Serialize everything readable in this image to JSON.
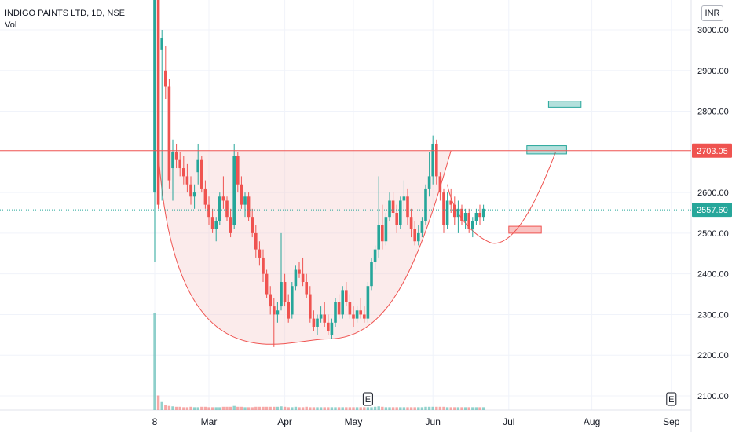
{
  "legend": {
    "symbol": "INDIGO PAINTS LTD, 1D, NSE",
    "volume_label": "Vol"
  },
  "currency": "INR",
  "colors": {
    "up": "#26a69a",
    "down": "#ef5350",
    "grid": "#f0f3fa",
    "resistance": "#ef5350",
    "pattern": "#f4c7c7"
  },
  "earnings_marker": "E",
  "chart_data": {
    "type": "candlestick",
    "ylim": [
      2070,
      3100
    ],
    "y_ticks": [
      2100,
      2200,
      2300,
      2400,
      2500,
      2600,
      2700,
      2800,
      2900,
      3000
    ],
    "x_ticks": [
      {
        "label": "8",
        "index": 0
      },
      {
        "label": "Mar",
        "index": 15
      },
      {
        "label": "Apr",
        "index": 36
      },
      {
        "label": "May",
        "index": 55
      },
      {
        "label": "Jun",
        "index": 77
      },
      {
        "label": "Jul",
        "index": 98
      },
      {
        "label": "Aug",
        "index": 121
      },
      {
        "label": "Sep",
        "index": 143
      }
    ],
    "price_labels": [
      {
        "value": 2703.05,
        "text": "2703.05",
        "color": "#ef5350",
        "line": "solid"
      },
      {
        "value": 2557.6,
        "text": "2557.60",
        "color": "#26a69a",
        "line": "dotted"
      }
    ],
    "series": [
      {
        "name": "INDIGO PAINTS LTD",
        "ohlc": [
          [
            2600,
            3100,
            2430,
            3080
          ],
          [
            3100,
            3120,
            2560,
            2570
          ],
          [
            2950,
            3000,
            2580,
            2980
          ],
          [
            2900,
            2960,
            2830,
            2860
          ],
          [
            2860,
            2880,
            2610,
            2630
          ],
          [
            2660,
            2730,
            2580,
            2700
          ],
          [
            2700,
            2720,
            2660,
            2680
          ],
          [
            2680,
            2700,
            2640,
            2660
          ],
          [
            2660,
            2690,
            2620,
            2640
          ],
          [
            2640,
            2670,
            2600,
            2620
          ],
          [
            2620,
            2640,
            2570,
            2590
          ],
          [
            2590,
            2620,
            2560,
            2600
          ],
          [
            2650,
            2720,
            2620,
            2680
          ],
          [
            2680,
            2690,
            2600,
            2610
          ],
          [
            2610,
            2630,
            2560,
            2570
          ],
          [
            2570,
            2590,
            2520,
            2540
          ],
          [
            2540,
            2560,
            2500,
            2510
          ],
          [
            2510,
            2540,
            2480,
            2530
          ],
          [
            2530,
            2600,
            2520,
            2590
          ],
          [
            2590,
            2640,
            2560,
            2580
          ],
          [
            2580,
            2590,
            2530,
            2540
          ],
          [
            2540,
            2560,
            2490,
            2500
          ],
          [
            2520,
            2720,
            2510,
            2690
          ],
          [
            2690,
            2700,
            2600,
            2620
          ],
          [
            2620,
            2640,
            2560,
            2570
          ],
          [
            2570,
            2600,
            2540,
            2590
          ],
          [
            2590,
            2600,
            2530,
            2540
          ],
          [
            2540,
            2560,
            2490,
            2500
          ],
          [
            2500,
            2520,
            2440,
            2460
          ],
          [
            2460,
            2480,
            2420,
            2440
          ],
          [
            2440,
            2460,
            2380,
            2400
          ],
          [
            2400,
            2410,
            2340,
            2350
          ],
          [
            2350,
            2370,
            2300,
            2320
          ],
          [
            2320,
            2340,
            2220,
            2300
          ],
          [
            2300,
            2330,
            2280,
            2310
          ],
          [
            2320,
            2500,
            2310,
            2380
          ],
          [
            2380,
            2400,
            2320,
            2330
          ],
          [
            2330,
            2350,
            2280,
            2290
          ],
          [
            2300,
            2380,
            2290,
            2370
          ],
          [
            2370,
            2420,
            2360,
            2410
          ],
          [
            2410,
            2430,
            2390,
            2400
          ],
          [
            2400,
            2440,
            2370,
            2380
          ],
          [
            2380,
            2400,
            2340,
            2350
          ],
          [
            2350,
            2370,
            2280,
            2290
          ],
          [
            2290,
            2310,
            2260,
            2270
          ],
          [
            2270,
            2300,
            2250,
            2290
          ],
          [
            2290,
            2320,
            2280,
            2300
          ],
          [
            2300,
            2330,
            2270,
            2280
          ],
          [
            2280,
            2300,
            2250,
            2260
          ],
          [
            2250,
            2290,
            2240,
            2280
          ],
          [
            2280,
            2340,
            2270,
            2330
          ],
          [
            2330,
            2350,
            2290,
            2300
          ],
          [
            2300,
            2370,
            2290,
            2360
          ],
          [
            2360,
            2380,
            2320,
            2330
          ],
          [
            2330,
            2350,
            2290,
            2300
          ],
          [
            2300,
            2320,
            2270,
            2290
          ],
          [
            2290,
            2320,
            2280,
            2310
          ],
          [
            2310,
            2340,
            2290,
            2300
          ],
          [
            2300,
            2320,
            2280,
            2290
          ],
          [
            2290,
            2380,
            2280,
            2370
          ],
          [
            2370,
            2440,
            2360,
            2430
          ],
          [
            2430,
            2470,
            2410,
            2460
          ],
          [
            2460,
            2640,
            2440,
            2520
          ],
          [
            2520,
            2570,
            2460,
            2480
          ],
          [
            2480,
            2550,
            2470,
            2540
          ],
          [
            2540,
            2600,
            2530,
            2580
          ],
          [
            2580,
            2600,
            2540,
            2550
          ],
          [
            2550,
            2570,
            2500,
            2520
          ],
          [
            2520,
            2590,
            2510,
            2580
          ],
          [
            2580,
            2630,
            2560,
            2590
          ],
          [
            2590,
            2610,
            2520,
            2540
          ],
          [
            2540,
            2560,
            2490,
            2510
          ],
          [
            2510,
            2530,
            2470,
            2480
          ],
          [
            2480,
            2520,
            2470,
            2500
          ],
          [
            2500,
            2540,
            2490,
            2530
          ],
          [
            2530,
            2620,
            2520,
            2610
          ],
          [
            2610,
            2700,
            2590,
            2640
          ],
          [
            2640,
            2740,
            2620,
            2720
          ],
          [
            2720,
            2730,
            2620,
            2640
          ],
          [
            2640,
            2650,
            2580,
            2600
          ],
          [
            2600,
            2610,
            2500,
            2520
          ],
          [
            2520,
            2600,
            2510,
            2580
          ],
          [
            2580,
            2610,
            2550,
            2570
          ],
          [
            2570,
            2590,
            2520,
            2540
          ],
          [
            2540,
            2580,
            2500,
            2560
          ],
          [
            2560,
            2570,
            2520,
            2530
          ],
          [
            2530,
            2560,
            2510,
            2550
          ],
          [
            2550,
            2560,
            2500,
            2510
          ],
          [
            2510,
            2540,
            2490,
            2530
          ],
          [
            2530,
            2560,
            2520,
            2550
          ],
          [
            2550,
            2570,
            2520,
            2540
          ],
          [
            2540,
            2570,
            2530,
            2560
          ]
        ],
        "volume": [
          2320,
          2130,
          2115,
          2108,
          2106,
          2105,
          2104,
          2104,
          2103,
          2103,
          2104,
          2103,
          2103,
          2104,
          2104,
          2103,
          2103,
          2103,
          2103,
          2104,
          2104,
          2104,
          2106,
          2104,
          2104,
          2103,
          2103,
          2103,
          2104,
          2104,
          2104,
          2104,
          2104,
          2104,
          2104,
          2105,
          2104,
          2103,
          2103,
          2104,
          2103,
          2103,
          2104,
          2103,
          2103,
          2103,
          2103,
          2103,
          2103,
          2103,
          2103,
          2103,
          2103,
          2103,
          2103,
          2103,
          2103,
          2103,
          2103,
          2103,
          2103,
          2104,
          2105,
          2104,
          2103,
          2103,
          2103,
          2103,
          2103,
          2103,
          2103,
          2103,
          2103,
          2103,
          2103,
          2104,
          2104,
          2104,
          2104,
          2104,
          2104,
          2103,
          2103,
          2103,
          2103,
          2103,
          2103,
          2103,
          2103,
          2103,
          2103,
          2103
        ]
      }
    ],
    "earnings_at_index": [
      59,
      143
    ],
    "cup_pattern": {
      "rim_value": 2703.05,
      "bottom_value": 2240,
      "start_index": 1,
      "bottom_index": 48,
      "end_index": 82
    },
    "handle_pattern": {
      "start_index": 81,
      "bottom_index": 94,
      "end_index": 111,
      "bottom_value": 2475,
      "end_value": 2700
    },
    "target_boxes": [
      {
        "from_index": 103,
        "to_index": 114,
        "low": 2695,
        "high": 2715,
        "color": "#26a69a"
      },
      {
        "from_index": 109,
        "to_index": 118,
        "low": 2810,
        "high": 2825,
        "color": "#26a69a"
      },
      {
        "from_index": 98,
        "to_index": 107,
        "low": 2500,
        "high": 2517,
        "color": "#ef5350"
      }
    ]
  }
}
